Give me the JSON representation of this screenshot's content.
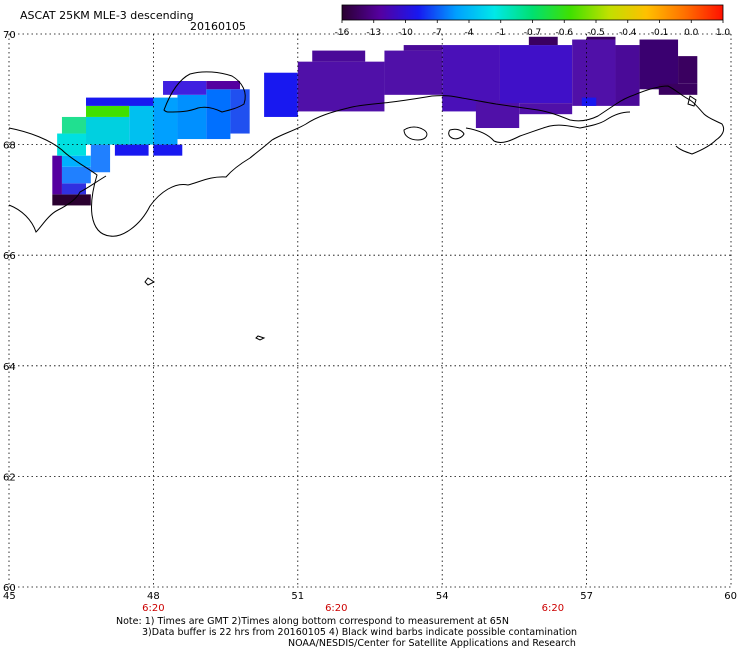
{
  "title": "ASCAT 25KM MLE-3 descending",
  "date": "20160105",
  "colorbar": {
    "labels": [
      "-16",
      "-13",
      "-10",
      "-7",
      "-4",
      "-1",
      "-0.7",
      "-0.6",
      "-0.5",
      "-0.4",
      "-0.1",
      "0.0",
      "1.0"
    ],
    "colors": [
      "#2a0030",
      "#5500a0",
      "#1818f0",
      "#00a0ff",
      "#00e8e8",
      "#00e070",
      "#40e000",
      "#c0e000",
      "#ffc000",
      "#ff7000",
      "#ff1000"
    ]
  },
  "map": {
    "lat_min": 60,
    "lat_max": 70,
    "lon_min": 45,
    "lon_max": 60,
    "lat_ticks": [
      "60",
      "62",
      "64",
      "66",
      "68",
      "70"
    ],
    "lon_ticks": [
      "45",
      "48",
      "51",
      "54",
      "57",
      "60"
    ],
    "time_labels": [
      {
        "lon": 48,
        "text": "6:20"
      },
      {
        "lon": 51.8,
        "text": "6:20"
      },
      {
        "lon": 56.3,
        "text": "6:20"
      }
    ],
    "swath_cells": [
      {
        "lon0": 45.9,
        "lon1": 46.7,
        "lat0": 66.9,
        "lat1": 67.1,
        "c": "#2a0030"
      },
      {
        "lon0": 45.9,
        "lon1": 46.1,
        "lat0": 67.1,
        "lat1": 67.8,
        "c": "#5500a0"
      },
      {
        "lon0": 46.1,
        "lon1": 46.6,
        "lat0": 67.1,
        "lat1": 67.3,
        "c": "#3030e0"
      },
      {
        "lon0": 46.1,
        "lon1": 46.7,
        "lat0": 67.3,
        "lat1": 67.6,
        "c": "#2080ff"
      },
      {
        "lon0": 46.1,
        "lon1": 46.7,
        "lat0": 67.6,
        "lat1": 67.8,
        "c": "#00b0ff"
      },
      {
        "lon0": 46.0,
        "lon1": 46.6,
        "lat0": 67.8,
        "lat1": 68.2,
        "c": "#00e0e0"
      },
      {
        "lon0": 46.1,
        "lon1": 46.7,
        "lat0": 68.2,
        "lat1": 68.5,
        "c": "#20e090"
      },
      {
        "lon0": 46.7,
        "lon1": 47.1,
        "lat0": 67.5,
        "lat1": 68.0,
        "c": "#2080ff"
      },
      {
        "lon0": 46.6,
        "lon1": 47.5,
        "lat0": 68.0,
        "lat1": 68.5,
        "c": "#00d0e0"
      },
      {
        "lon0": 46.6,
        "lon1": 47.5,
        "lat0": 68.5,
        "lat1": 68.7,
        "c": "#40e000"
      },
      {
        "lon0": 47.5,
        "lon1": 48.0,
        "lat0": 68.0,
        "lat1": 68.8,
        "c": "#00c0f0"
      },
      {
        "lon0": 46.6,
        "lon1": 48.0,
        "lat0": 68.7,
        "lat1": 68.85,
        "c": "#1818f0"
      },
      {
        "lon0": 48.0,
        "lon1": 48.5,
        "lat0": 68.0,
        "lat1": 68.85,
        "c": "#00a0ff"
      },
      {
        "lon0": 47.2,
        "lon1": 47.9,
        "lat0": 67.8,
        "lat1": 68.0,
        "c": "#1818f0"
      },
      {
        "lon0": 48.5,
        "lon1": 49.1,
        "lat0": 68.1,
        "lat1": 68.9,
        "c": "#0090ff"
      },
      {
        "lon0": 48.2,
        "lon1": 49.1,
        "lat0": 68.9,
        "lat1": 69.15,
        "c": "#4020e0"
      },
      {
        "lon0": 49.1,
        "lon1": 49.6,
        "lat0": 68.1,
        "lat1": 69.0,
        "c": "#0070ff"
      },
      {
        "lon0": 49.1,
        "lon1": 49.8,
        "lat0": 69.0,
        "lat1": 69.15,
        "c": "#5500a0"
      },
      {
        "lon0": 49.6,
        "lon1": 50.0,
        "lat0": 68.2,
        "lat1": 69.0,
        "c": "#2050f0"
      },
      {
        "lon0": 48.0,
        "lon1": 48.6,
        "lat0": 67.8,
        "lat1": 68.0,
        "c": "#1818f0"
      },
      {
        "lon0": 50.3,
        "lon1": 51.0,
        "lat0": 68.5,
        "lat1": 69.3,
        "c": "#1818f0"
      },
      {
        "lon0": 51.0,
        "lon1": 52.8,
        "lat0": 68.6,
        "lat1": 69.5,
        "c": "#5010a8"
      },
      {
        "lon0": 51.3,
        "lon1": 52.4,
        "lat0": 69.5,
        "lat1": 69.7,
        "c": "#4a0a98"
      },
      {
        "lon0": 52.8,
        "lon1": 54.0,
        "lat0": 68.9,
        "lat1": 69.7,
        "c": "#5010a8"
      },
      {
        "lon0": 53.2,
        "lon1": 54.0,
        "lat0": 69.7,
        "lat1": 69.8,
        "c": "#4a0a98"
      },
      {
        "lon0": 54.0,
        "lon1": 55.2,
        "lat0": 68.6,
        "lat1": 69.8,
        "c": "#4a10b8"
      },
      {
        "lon0": 54.7,
        "lon1": 55.6,
        "lat0": 68.3,
        "lat1": 68.8,
        "c": "#5010a8"
      },
      {
        "lon0": 55.2,
        "lon1": 56.7,
        "lat0": 68.75,
        "lat1": 69.8,
        "c": "#4010c8"
      },
      {
        "lon0": 55.6,
        "lon1": 56.7,
        "lat0": 68.55,
        "lat1": 68.75,
        "c": "#5010a8"
      },
      {
        "lon0": 55.8,
        "lon1": 56.4,
        "lat0": 69.8,
        "lat1": 69.95,
        "c": "#3a0060"
      },
      {
        "lon0": 56.7,
        "lon1": 57.6,
        "lat0": 68.7,
        "lat1": 69.9,
        "c": "#5010a8"
      },
      {
        "lon0": 57.0,
        "lon1": 57.6,
        "lat0": 69.9,
        "lat1": 69.95,
        "c": "#3a0060"
      },
      {
        "lon0": 57.6,
        "lon1": 58.1,
        "lat0": 68.7,
        "lat1": 69.8,
        "c": "#4a0a98"
      },
      {
        "lon0": 58.1,
        "lon1": 58.9,
        "lat0": 69.0,
        "lat1": 69.9,
        "c": "#3a0070"
      },
      {
        "lon0": 58.9,
        "lon1": 59.3,
        "lat0": 69.1,
        "lat1": 69.6,
        "c": "#3a0060"
      },
      {
        "lon0": 58.5,
        "lon1": 59.3,
        "lat0": 68.9,
        "lat1": 69.1,
        "c": "#3a0060"
      },
      {
        "lon0": 56.9,
        "lon1": 57.2,
        "lat0": 68.7,
        "lat1": 68.85,
        "c": "#1818f0"
      }
    ]
  },
  "footer": {
    "note_line1": "Note: 1) Times are GMT 2)Times along bottom correspond to measurement at 65N",
    "note_line2": "3)Data buffer is 22 hrs from 20160105 4) Black wind barbs indicate possible contamination",
    "credit": "NOAA/NESDIS/Center for Satellite Applications and Research"
  }
}
